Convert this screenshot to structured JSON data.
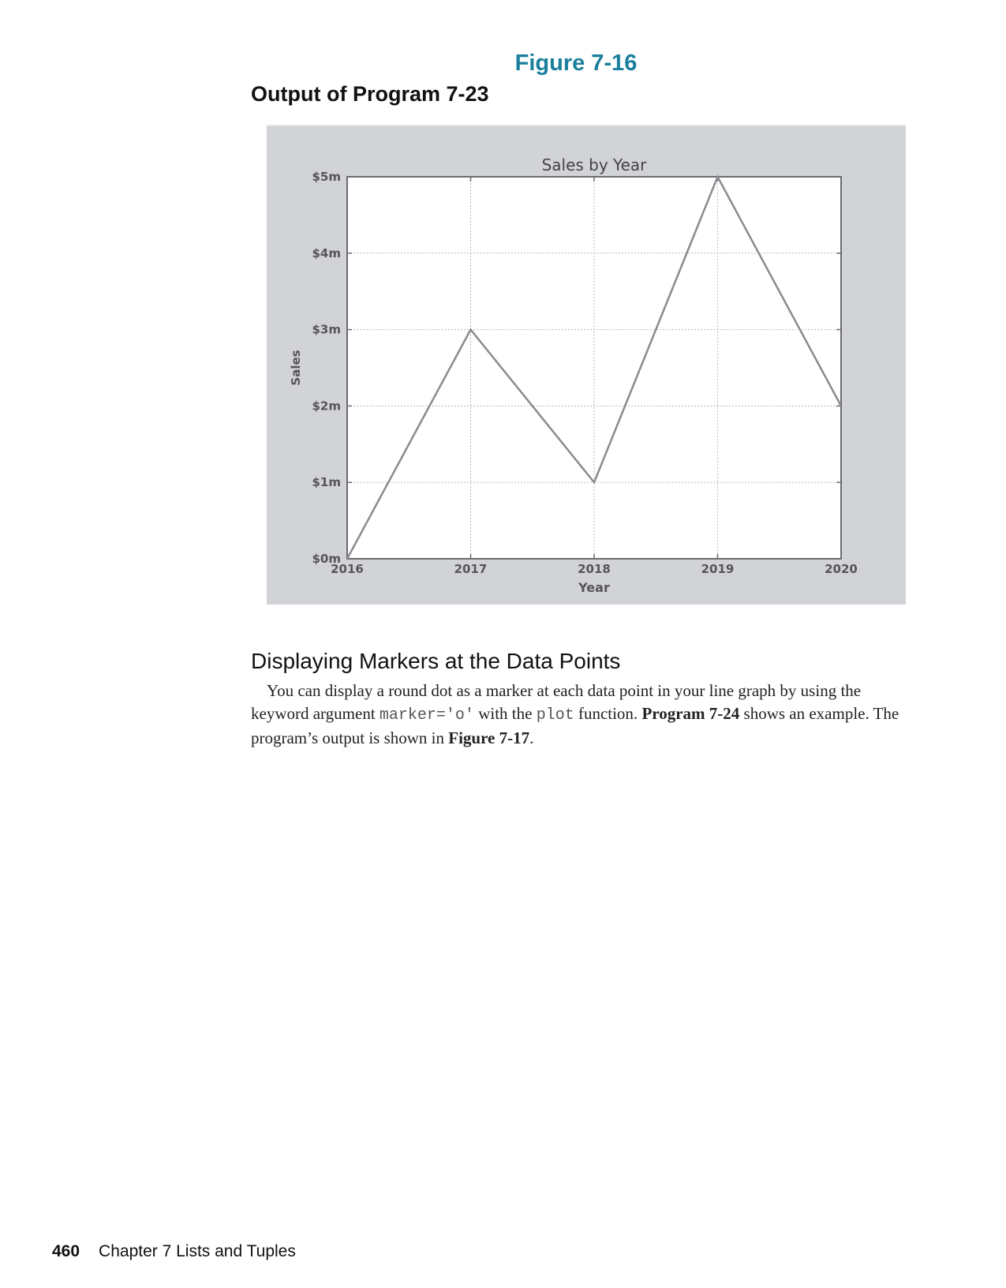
{
  "figure": {
    "label": "Figure 7-16",
    "caption": "Output of Program 7-23"
  },
  "chart_data": {
    "type": "line",
    "title": "Sales by Year",
    "xlabel": "Year",
    "ylabel": "Sales",
    "x": [
      2016,
      2017,
      2018,
      2019,
      2020
    ],
    "x_tick_labels": [
      "2016",
      "2017",
      "2018",
      "2019",
      "2020"
    ],
    "y_ticks": [
      0,
      1,
      2,
      3,
      4,
      5
    ],
    "y_tick_labels": [
      "$0m",
      "$1m",
      "$2m",
      "$3m",
      "$4m",
      "$5m"
    ],
    "series": [
      {
        "values": [
          0,
          3,
          1,
          5,
          2
        ]
      }
    ],
    "xlim": [
      2016,
      2020
    ],
    "ylim": [
      0,
      5
    ],
    "grid": true,
    "colors": {
      "line": "#8a8b8f",
      "panel": "#d1d3d7",
      "axis": "#6b6c70"
    }
  },
  "section": {
    "heading": "Displaying Markers at the Data Points",
    "p_1": "You can display a round dot as a marker at each data point in your line graph by using the keyword argument ",
    "code_1": "marker='o'",
    "p_2": " with the ",
    "code_2": "plot",
    "p_3": " function. ",
    "bold_1": "Program 7-24",
    "p_4": " shows an example. The program’s output is shown in ",
    "bold_2": "Figure 7-17",
    "p_5": "."
  },
  "footer": {
    "page_number": "460",
    "chapter": "Chapter 7 Lists and Tuples"
  }
}
